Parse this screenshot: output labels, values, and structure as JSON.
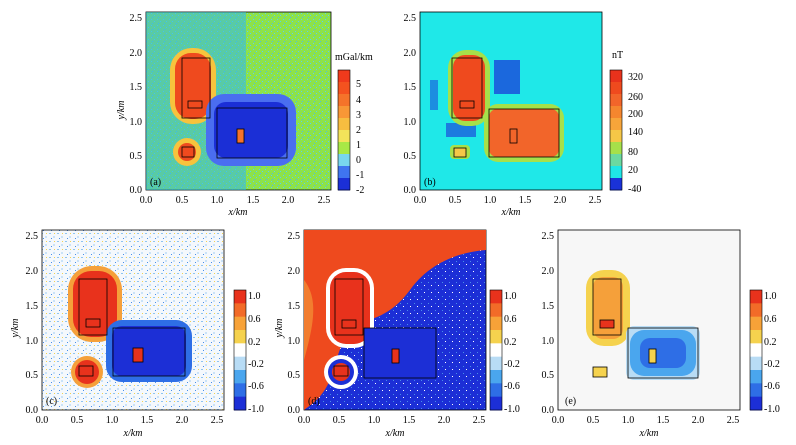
{
  "figure": {
    "panels": [
      {
        "id": "a",
        "panel_label": "(a)",
        "unit": "mGal/km",
        "colorbar_ticks": [
          "5",
          "4",
          "3",
          "2",
          "1",
          "0",
          "-1",
          "-2"
        ],
        "colorbar_colors": [
          "#f03a1c",
          "#f4521f",
          "#f5732a",
          "#f89736",
          "#f7bd40",
          "#f3e35a",
          "#a8e846",
          "#78d6ee",
          "#3f74f0",
          "#1b2fd6"
        ],
        "x_ticks": [
          "0.0",
          "0.5",
          "1.0",
          "1.5",
          "2.0",
          "2.5"
        ],
        "y_ticks": [
          "0.0",
          "0.5",
          "1.0",
          "1.5",
          "2.0",
          "2.5"
        ],
        "xlabel": "x/km",
        "ylabel": "y/km"
      },
      {
        "id": "b",
        "panel_label": "(b)",
        "unit": "nT",
        "colorbar_ticks": [
          "320",
          "260",
          "200",
          "140",
          "80",
          "20",
          "-40"
        ],
        "colorbar_colors": [
          "#e8321c",
          "#ef4a1e",
          "#f2652a",
          "#f5862e",
          "#f7a53a",
          "#f5c747",
          "#a6e04a",
          "#6bd9a0",
          "#1fe6e6",
          "#1a32d8"
        ],
        "x_ticks": [
          "0.0",
          "0.5",
          "1.0",
          "1.5",
          "2.0",
          "2.5"
        ],
        "y_ticks": [
          "0.0",
          "0.5",
          "1.0",
          "1.5",
          "2.0",
          "2.5"
        ],
        "xlabel": "x/km",
        "ylabel": "y/km"
      },
      {
        "id": "c",
        "panel_label": "(c)",
        "unit": "",
        "colorbar_ticks": [
          "1.0",
          "0.6",
          "0.2",
          "-0.2",
          "-0.6",
          "-1.0"
        ],
        "colorbar_colors": [
          "#e8321c",
          "#f26b28",
          "#f7a238",
          "#f5d24e",
          "#ffffff",
          "#b8dcf5",
          "#4aa6ee",
          "#2e6ee6",
          "#1c2fd6"
        ],
        "x_ticks": [
          "0.0",
          "0.5",
          "1.0",
          "1.5",
          "2.0",
          "2.5"
        ],
        "y_ticks": [
          "0.0",
          "0.5",
          "1.0",
          "1.5",
          "2.0",
          "2.5"
        ],
        "xlabel": "x/km",
        "ylabel": "y/km"
      },
      {
        "id": "d",
        "panel_label": "(d)",
        "unit": "",
        "colorbar_ticks": [
          "1.0",
          "0.6",
          "0.2",
          "-0.2",
          "-0.6",
          "-1.0"
        ],
        "colorbar_colors": [
          "#e8321c",
          "#f26b28",
          "#f7a238",
          "#f5d24e",
          "#ffffff",
          "#b8dcf5",
          "#4aa6ee",
          "#2e6ee6",
          "#1c2fd6"
        ],
        "x_ticks": [
          "0.0",
          "0.5",
          "1.0",
          "1.5",
          "2.0",
          "2.5"
        ],
        "y_ticks": [
          "0.0",
          "0.5",
          "1.0",
          "1.5",
          "2.0",
          "2.5"
        ],
        "xlabel": "x/km",
        "ylabel": "y/km"
      },
      {
        "id": "e",
        "panel_label": "(e)",
        "unit": "",
        "colorbar_ticks": [
          "1.0",
          "0.6",
          "0.2",
          "-0.2",
          "-0.6",
          "-1.0"
        ],
        "colorbar_colors": [
          "#e8321c",
          "#f26b28",
          "#f7a238",
          "#f5d24e",
          "#ffffff",
          "#b8dcf5",
          "#4aa6ee",
          "#2e6ee6",
          "#1c2fd6"
        ],
        "x_ticks": [
          "0.0",
          "0.5",
          "1.0",
          "1.5",
          "2.0",
          "2.5"
        ],
        "y_ticks": [
          "0.0",
          "0.5",
          "1.0",
          "1.5",
          "2.0",
          "2.5"
        ],
        "xlabel": "x/km",
        "ylabel": "y/km"
      }
    ]
  },
  "chart_data": [
    {
      "type": "heatmap",
      "panel": "(a)",
      "xlabel": "x/km",
      "ylabel": "y/km",
      "xlim": [
        0,
        2.6
      ],
      "ylim": [
        0,
        2.6
      ],
      "colorbar_label": "mGal/km",
      "colorbar_range": [
        -2,
        5
      ],
      "bodies_km": [
        {
          "x": [
            0.5,
            0.9
          ],
          "y": [
            1.1,
            1.9
          ]
        },
        {
          "x": [
            1.0,
            2.0
          ],
          "y": [
            0.5,
            1.2
          ]
        },
        {
          "x": [
            0.5,
            0.7
          ],
          "y": [
            0.5,
            0.65
          ]
        },
        {
          "x": [
            0.58,
            0.8
          ],
          "y": [
            1.2,
            1.3
          ]
        },
        {
          "x": [
            1.3,
            1.4
          ],
          "y": [
            0.7,
            0.9
          ]
        }
      ]
    },
    {
      "type": "heatmap",
      "panel": "(b)",
      "xlabel": "x/km",
      "ylabel": "y/km",
      "xlim": [
        0,
        2.6
      ],
      "ylim": [
        0,
        2.6
      ],
      "colorbar_label": "nT",
      "colorbar_range": [
        -40,
        320
      ],
      "bodies_km": [
        {
          "x": [
            0.5,
            0.9
          ],
          "y": [
            1.1,
            1.9
          ]
        },
        {
          "x": [
            1.0,
            2.0
          ],
          "y": [
            0.5,
            1.2
          ]
        },
        {
          "x": [
            0.5,
            0.7
          ],
          "y": [
            0.5,
            0.65
          ]
        },
        {
          "x": [
            0.58,
            0.8
          ],
          "y": [
            1.2,
            1.3
          ]
        },
        {
          "x": [
            1.3,
            1.4
          ],
          "y": [
            0.7,
            0.9
          ]
        }
      ]
    },
    {
      "type": "heatmap",
      "panel": "(c)",
      "xlabel": "x/km",
      "ylabel": "y/km",
      "xlim": [
        0,
        2.6
      ],
      "ylim": [
        0,
        2.6
      ],
      "colorbar_range": [
        -1.0,
        1.0
      ]
    },
    {
      "type": "heatmap",
      "panel": "(d)",
      "xlabel": "x/km",
      "ylabel": "y/km",
      "xlim": [
        0,
        2.6
      ],
      "ylim": [
        0,
        2.6
      ],
      "colorbar_range": [
        -1.0,
        1.0
      ]
    },
    {
      "type": "heatmap",
      "panel": "(e)",
      "xlabel": "x/km",
      "ylabel": "y/km",
      "xlim": [
        0,
        2.6
      ],
      "ylim": [
        0,
        2.6
      ],
      "colorbar_range": [
        -1.0,
        1.0
      ]
    }
  ]
}
